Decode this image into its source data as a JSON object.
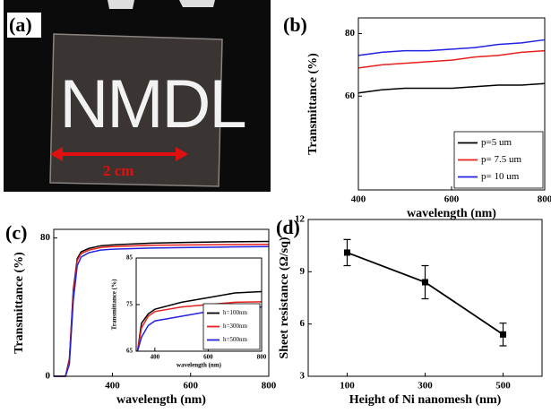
{
  "photo": {
    "label": "(a)",
    "text": "NMDL",
    "scale": "2 cm"
  },
  "chart_data": [
    {
      "type": "line",
      "label": "(b)",
      "x_label": "wavelength (nm)",
      "y_label": "Transmittance (%)",
      "x": [
        400,
        450,
        500,
        550,
        600,
        650,
        700,
        750,
        800
      ],
      "series": [
        {
          "name": "p=5 um",
          "color": "#000000",
          "values": [
            61,
            62,
            62.5,
            62.5,
            62.5,
            63,
            63.5,
            63.5,
            64
          ]
        },
        {
          "name": "p= 7.5 um",
          "color": "#e8201e",
          "values": [
            69,
            70,
            70.5,
            71,
            71.5,
            72.5,
            73,
            74,
            74.5
          ]
        },
        {
          "name": "p= 10 um",
          "color": "#2222e0",
          "values": [
            73,
            74,
            74.5,
            74.5,
            75,
            75.5,
            76.5,
            77,
            78
          ]
        }
      ],
      "xlim": [
        400,
        800
      ],
      "ylim": [
        30,
        85
      ],
      "xticks": [
        400,
        600,
        800
      ],
      "yticks": [
        60,
        80
      ],
      "legend": "lower right"
    },
    {
      "type": "line",
      "label": "(c)",
      "x_label": "wavelength (nm)",
      "y_label": "Transmittance (%)",
      "x": [
        250,
        280,
        290,
        300,
        310,
        320,
        340,
        370,
        400,
        500,
        600,
        700,
        800
      ],
      "series": [
        {
          "color": "#000000",
          "values": [
            0,
            0,
            10,
            50,
            68,
            72,
            74,
            75.5,
            76,
            77,
            77.5,
            77.8,
            78
          ]
        },
        {
          "color": "#e8201e",
          "values": [
            0,
            0,
            9,
            48,
            67,
            71,
            73,
            74.5,
            75,
            75.8,
            76,
            76.2,
            76.3
          ]
        },
        {
          "color": "#2222e0",
          "values": [
            0,
            0,
            7,
            44,
            64,
            69,
            71.5,
            73,
            73.5,
            74.2,
            74.5,
            74.8,
            75
          ]
        }
      ],
      "xlim": [
        250,
        800
      ],
      "ylim": [
        0,
        85
      ],
      "xticks": [
        400,
        600,
        800
      ],
      "yticks": [
        0,
        80
      ]
    },
    {
      "type": "line",
      "x_label": "wavelength (nm)",
      "y_label": "Transmittance (%)",
      "x": [
        335,
        350,
        375,
        400,
        500,
        600,
        700,
        800
      ],
      "series": [
        {
          "name": "h=100nm",
          "color": "#000000",
          "values": [
            65,
            71,
            73,
            74,
            75.5,
            76.5,
            77.5,
            77.8
          ]
        },
        {
          "name": "h=300nm",
          "color": "#e8201e",
          "values": [
            65,
            70,
            72.5,
            73.5,
            74.5,
            75,
            75.5,
            75.6
          ]
        },
        {
          "name": "h=500nm",
          "color": "#2222e0",
          "values": [
            65,
            68,
            70.5,
            71.5,
            72.5,
            73.5,
            74,
            74.5
          ]
        }
      ],
      "xlim": [
        330,
        800
      ],
      "ylim": [
        65,
        85
      ],
      "xticks": [
        400,
        600,
        800
      ],
      "yticks": [
        65,
        75,
        85
      ],
      "legend": "lower right"
    },
    {
      "type": "errorbar",
      "label": "(d)",
      "x_label": "Height of Ni nanomesh (nm)",
      "y_label": "Sheet resistance (Ω/sq)",
      "categories": [
        "100",
        "300",
        "500"
      ],
      "values": [
        10.1,
        8.4,
        5.4
      ],
      "errors": [
        0.75,
        0.95,
        0.65
      ],
      "color": "#000000",
      "ylim": [
        3,
        12
      ],
      "yticks": [
        3,
        6,
        9,
        12
      ]
    }
  ]
}
